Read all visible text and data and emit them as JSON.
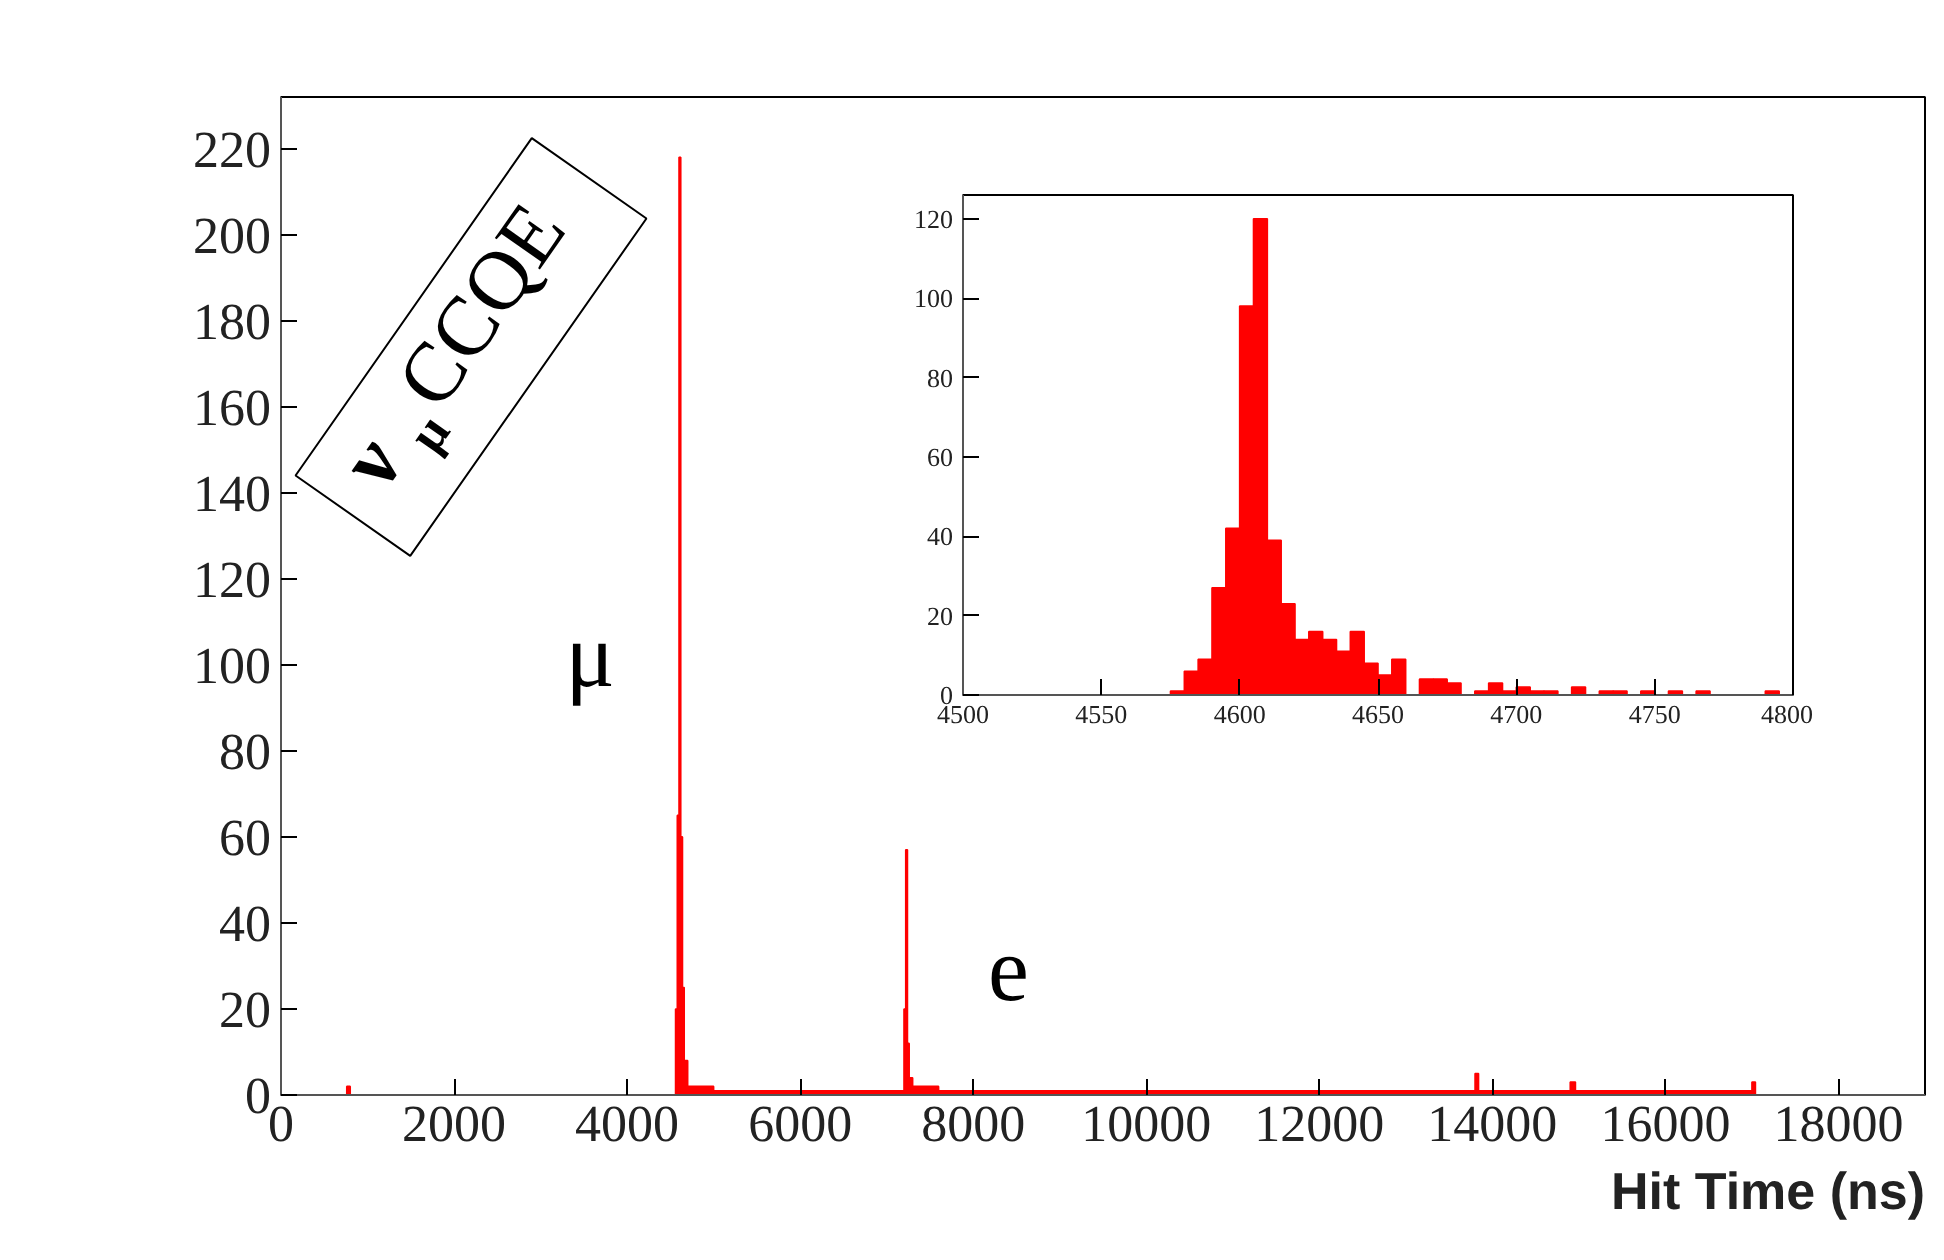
{
  "chart_data": [
    {
      "type": "histogram",
      "xlabel": "Hit Time (ns)",
      "color": "#ff0000",
      "bins": [
        0,
        760,
        800,
        4560,
        4580,
        4600,
        4620,
        4640,
        4660,
        4700,
        5000,
        7200,
        7220,
        7240,
        7260,
        7300,
        7600,
        13800,
        13840,
        14900,
        14960,
        17000,
        17040,
        19000
      ],
      "values": [
        0,
        2,
        0,
        20,
        65,
        218,
        60,
        25,
        8,
        2,
        1,
        20,
        57,
        12,
        4,
        2,
        1,
        5,
        1,
        3,
        1,
        3,
        0
      ],
      "xlim": [
        0,
        19000
      ],
      "ylim": [
        0,
        232
      ],
      "xticks": [
        0,
        2000,
        4000,
        6000,
        8000,
        10000,
        12000,
        14000,
        16000,
        18000
      ],
      "yticks": [
        0,
        20,
        40,
        60,
        80,
        100,
        120,
        140,
        160,
        180,
        200,
        220
      ],
      "annotations": [
        "ν$_{μ}$CCQE",
        "μ",
        "e"
      ]
    },
    {
      "type": "histogram",
      "color": "#ff0000",
      "bins": [
        4500,
        4505,
        4510,
        4515,
        4520,
        4525,
        4530,
        4535,
        4540,
        4545,
        4550,
        4555,
        4560,
        4565,
        4570,
        4575,
        4580,
        4585,
        4590,
        4595,
        4600,
        4605,
        4610,
        4615,
        4620,
        4625,
        4630,
        4635,
        4640,
        4645,
        4650,
        4655,
        4660,
        4665,
        4670,
        4675,
        4680,
        4685,
        4690,
        4695,
        4700,
        4705,
        4710,
        4715,
        4720,
        4725,
        4730,
        4735,
        4740,
        4745,
        4750,
        4755,
        4760,
        4765,
        4770,
        4775,
        4780,
        4785,
        4790,
        4795,
        4800
      ],
      "values": [
        0,
        0,
        0,
        0,
        0,
        0,
        0,
        0,
        0,
        0,
        0,
        0,
        0,
        0,
        0,
        1,
        6,
        9,
        27,
        42,
        98,
        120,
        39,
        23,
        14,
        16,
        14,
        11,
        16,
        8,
        5,
        9,
        0,
        4,
        4,
        3,
        0,
        1,
        3,
        1,
        2,
        1,
        1,
        0,
        2,
        0,
        1,
        1,
        0,
        1,
        0,
        1,
        0,
        1,
        0,
        0,
        0,
        0,
        1,
        0
      ],
      "xlim": [
        4500,
        4800
      ],
      "ylim": [
        0,
        126
      ],
      "xticks": [
        4500,
        4550,
        4600,
        4650,
        4700,
        4750,
        4800
      ],
      "yticks": [
        0,
        20,
        40,
        60,
        80,
        100,
        120
      ]
    }
  ]
}
